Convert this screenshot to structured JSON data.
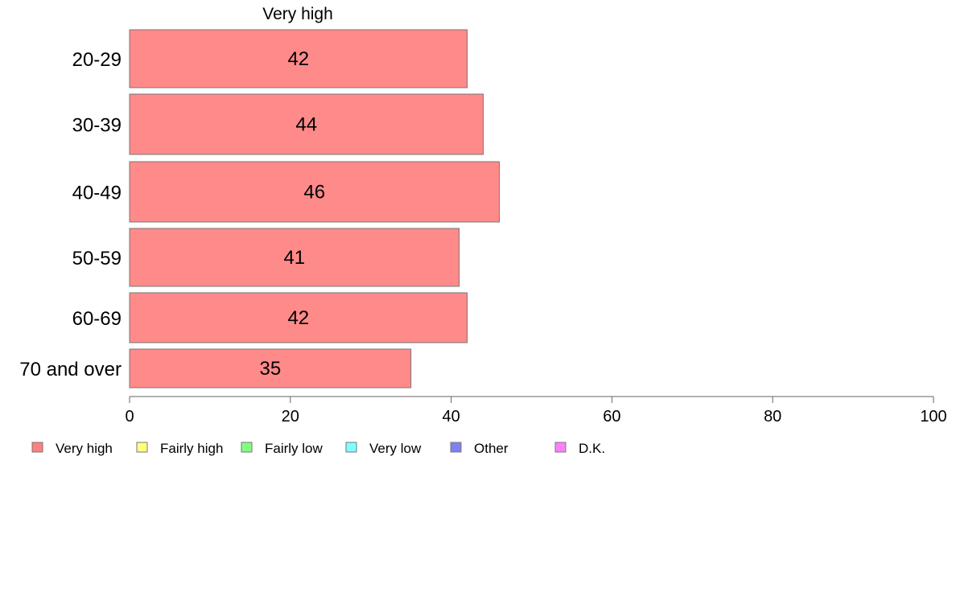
{
  "chart_data": {
    "type": "bar",
    "orientation": "horizontal",
    "title": "Very high",
    "categories": [
      "20-29",
      "30-39",
      "40-49",
      "50-59",
      "60-69",
      "70 and over"
    ],
    "series": [
      {
        "name": "Very high",
        "values": [
          42,
          44,
          46,
          41,
          42,
          35
        ],
        "color": "#ff8a8a"
      }
    ],
    "data_labels": [
      "42",
      "44",
      "46",
      "41",
      "42",
      "35"
    ],
    "xlim": [
      0,
      100
    ],
    "xticks": [
      0,
      20,
      40,
      60,
      80,
      100
    ],
    "grid": false,
    "legend_position": "bottom",
    "legend": [
      {
        "label": "Very high",
        "color": "#ff8080"
      },
      {
        "label": "Fairly high",
        "color": "#ffff80"
      },
      {
        "label": "Fairly low",
        "color": "#80ff80"
      },
      {
        "label": "Very low",
        "color": "#80ffff"
      },
      {
        "label": "Other",
        "color": "#8080f0"
      },
      {
        "label": "D.K.",
        "color": "#ff80ff"
      }
    ]
  }
}
